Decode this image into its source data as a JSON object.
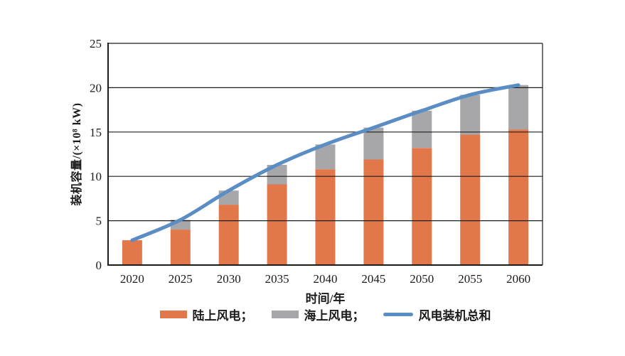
{
  "chart_data": {
    "type": "bar",
    "stacked": true,
    "title": "",
    "xlabel": "时间/年",
    "ylabel": "装机容量/(×10⁸ kW)",
    "categories": [
      "2020",
      "2025",
      "2030",
      "2035",
      "2040",
      "2045",
      "2050",
      "2055",
      "2060"
    ],
    "series": [
      {
        "name": "陆上风电",
        "kind": "bar",
        "color": "#E2784A",
        "values": [
          2.8,
          4.0,
          6.8,
          9.1,
          10.8,
          11.9,
          13.2,
          14.7,
          15.3
        ]
      },
      {
        "name": "海上风电",
        "kind": "bar",
        "color": "#A7A6A9",
        "values": [
          0,
          1.1,
          1.6,
          2.2,
          2.8,
          3.6,
          4.2,
          4.5,
          5.0
        ]
      },
      {
        "name": "风电装机总和",
        "kind": "line",
        "color": "#5B8DC5",
        "values": [
          2.8,
          5.1,
          8.4,
          11.3,
          13.6,
          15.5,
          17.4,
          19.2,
          20.3
        ]
      }
    ],
    "ylim": [
      0,
      25
    ],
    "yticks": [
      0,
      5,
      10,
      15,
      20,
      25
    ],
    "grid": true,
    "grid_color": "#1c1c1c",
    "axis_color": "#1c1c1c",
    "legend_position": "bottom",
    "legend": [
      {
        "label": "陆上风电；",
        "swatch": "bar",
        "color": "#E2784A"
      },
      {
        "label": "海上风电；",
        "swatch": "bar",
        "color": "#A7A6A9"
      },
      {
        "label": "风电装机总和",
        "swatch": "line",
        "color": "#5B8DC5"
      }
    ]
  }
}
